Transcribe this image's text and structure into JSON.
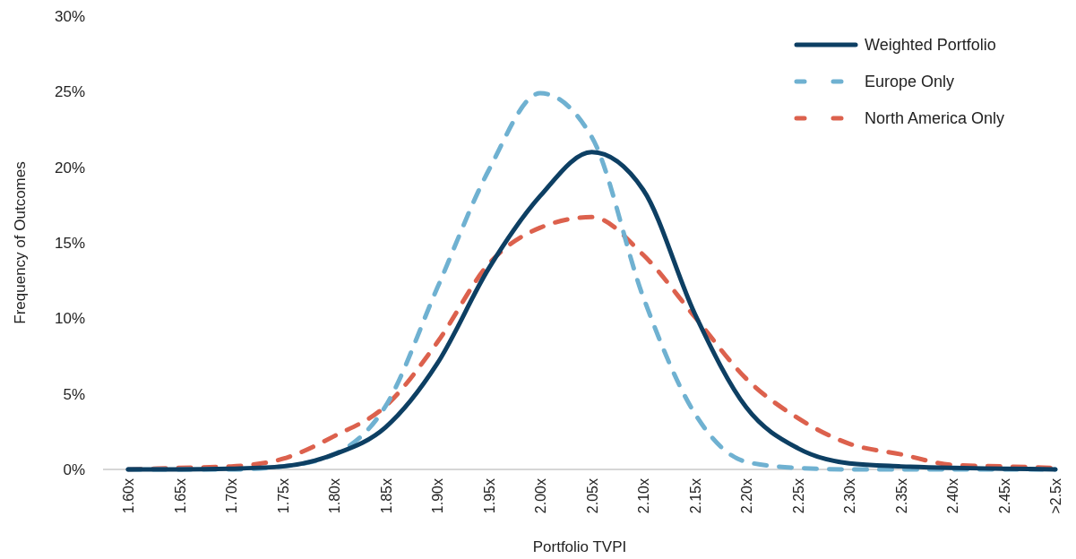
{
  "chart_data": {
    "type": "line",
    "xlabel": "Portfolio TVPI",
    "ylabel": "Frequency of Outcomes",
    "categories": [
      "1.60x",
      "1.65x",
      "1.70x",
      "1.75x",
      "1.80x",
      "1.85x",
      "1.90x",
      "1.95x",
      "2.00x",
      "2.05x",
      "2.10x",
      "2.15x",
      "2.20x",
      "2.25x",
      "2.30x",
      "2.35x",
      "2.40x",
      "2.45x",
      ">2.5x"
    ],
    "series": [
      {
        "name": "Weighted Portfolio",
        "color": "#0d3f63",
        "line_style": "solid",
        "values": [
          0,
          0,
          0.05,
          0.2,
          1.0,
          2.8,
          7.0,
          13.3,
          18.1,
          21.0,
          18.5,
          10.3,
          4.1,
          1.4,
          0.4,
          0.2,
          0.1,
          0.05,
          0
        ]
      },
      {
        "name": "Europe Only",
        "color": "#6fb1d1",
        "line_style": "dashed",
        "values": [
          0,
          0,
          0,
          0.2,
          1.0,
          4.2,
          12.0,
          19.8,
          24.9,
          22.0,
          11.4,
          3.7,
          0.5,
          0.1,
          0,
          0,
          0,
          0,
          0
        ]
      },
      {
        "name": "North America Only",
        "color": "#dc614d",
        "line_style": "dashed",
        "values": [
          0,
          0.1,
          0.2,
          0.7,
          2.2,
          4.2,
          8.4,
          13.6,
          16.0,
          16.7,
          14.2,
          10.1,
          6.0,
          3.4,
          1.7,
          1.0,
          0.3,
          0.2,
          0.1
        ]
      }
    ],
    "ylim": [
      0,
      30
    ],
    "yticks": [
      {
        "value": 0,
        "label": "0%"
      },
      {
        "value": 5,
        "label": "5%"
      },
      {
        "value": 10,
        "label": "10%"
      },
      {
        "value": 15,
        "label": "15%"
      },
      {
        "value": 20,
        "label": "20%"
      },
      {
        "value": 25,
        "label": "25%"
      },
      {
        "value": 30,
        "label": "30%"
      }
    ],
    "grid": false,
    "legend": "top right",
    "marker": "none"
  }
}
